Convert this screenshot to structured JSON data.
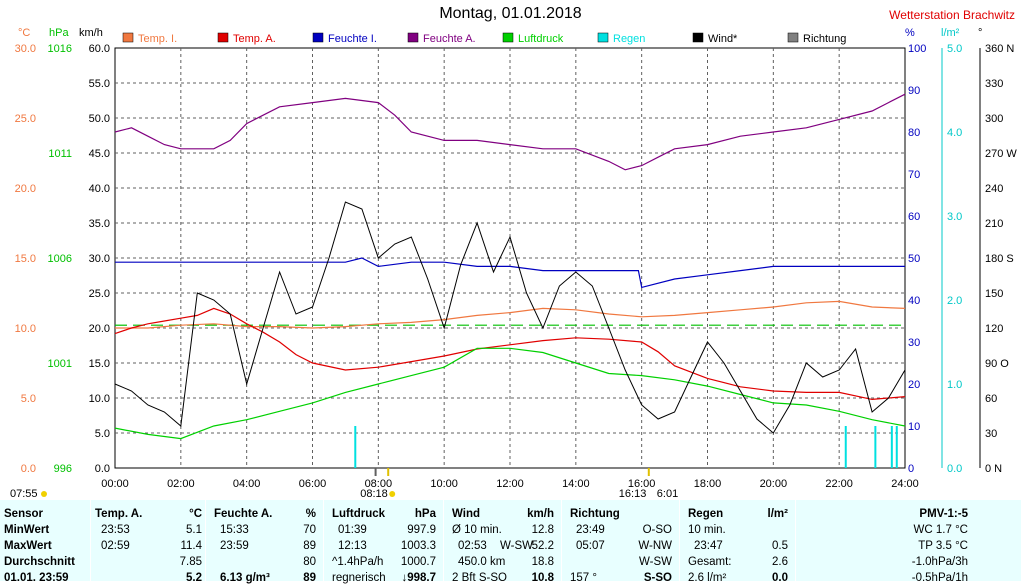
{
  "title": "Montag, 01.01.2018",
  "station": "Wetterstation Brachwitz",
  "legend": [
    {
      "label": "Temp. I.",
      "color": "#f07840"
    },
    {
      "label": "Temp. A.",
      "color": "#e00000"
    },
    {
      "label": "Feuchte I.",
      "color": "#0000c0"
    },
    {
      "label": "Feuchte A.",
      "color": "#800080"
    },
    {
      "label": "Luftdruck",
      "color": "#00d000"
    },
    {
      "label": "Regen",
      "color": "#00e0e0"
    },
    {
      "label": "Wind*",
      "color": "#000000"
    },
    {
      "label": "Richtung",
      "color": "#808080"
    }
  ],
  "axes_units": {
    "temp": "°C",
    "pressure": "hPa",
    "wind": "km/h",
    "humidity": "%",
    "rain": "l/m²",
    "direction": "°"
  },
  "chart_data": {
    "type": "line",
    "x_range": [
      "00:00",
      "24:00"
    ],
    "x_ticks": [
      "00:00",
      "02:00",
      "04:00",
      "06:00",
      "08:00",
      "10:00",
      "12:00",
      "14:00",
      "16:00",
      "18:00",
      "20:00",
      "22:00",
      "24:00"
    ],
    "axes": {
      "temp": {
        "range": [
          0,
          30
        ],
        "ticks": [
          "30.0",
          "25.0",
          "20.0",
          "15.0",
          "10.0",
          "5.0",
          "0.0"
        ],
        "color": "#f07840"
      },
      "pressure": {
        "range": [
          996,
          1016
        ],
        "ticks": [
          "1016",
          "1011",
          "1006",
          "1001",
          "996"
        ],
        "color": "#00c000"
      },
      "wind": {
        "range": [
          0,
          60
        ],
        "ticks": [
          "60.0",
          "55.0",
          "50.0",
          "45.0",
          "40.0",
          "35.0",
          "30.0",
          "25.0",
          "20.0",
          "15.0",
          "10.0",
          "5.0",
          "0.0"
        ],
        "color": "#000000"
      },
      "humidity": {
        "range": [
          0,
          100
        ],
        "ticks": [
          "100",
          "90",
          "80",
          "70",
          "60",
          "50",
          "40",
          "30",
          "20",
          "10",
          "0"
        ],
        "color": "#0000c0"
      },
      "rain": {
        "range": [
          0,
          5
        ],
        "ticks": [
          "5.0",
          "4.0",
          "3.0",
          "2.0",
          "1.0",
          "0.0"
        ],
        "color": "#00c8c8"
      },
      "direction": {
        "range": [
          0,
          360
        ],
        "ticks": [
          "360 N",
          "330",
          "300",
          "270 W",
          "240",
          "210",
          "180 S",
          "150",
          "120",
          "90 O",
          "60",
          "30",
          "0 N"
        ],
        "color": "#000000"
      }
    },
    "sunrise": "08:18",
    "sunset": "16:13",
    "day_length": "6:01",
    "dawn": "07:55",
    "series": [
      {
        "name": "Temp. I.",
        "axis": "temp",
        "x": [
          0,
          1,
          2,
          3,
          4,
          5,
          6,
          7,
          8,
          9,
          10,
          11,
          12,
          13,
          14,
          15,
          16,
          17,
          18,
          19,
          20,
          21,
          22,
          23,
          24
        ],
        "values": [
          10.0,
          10.0,
          10.2,
          10.3,
          10.1,
          10.1,
          10.0,
          10.1,
          10.3,
          10.4,
          10.6,
          10.9,
          11.1,
          11.4,
          11.3,
          11.0,
          10.8,
          10.9,
          11.1,
          11.3,
          11.5,
          11.8,
          11.9,
          11.5,
          11.4
        ]
      },
      {
        "name": "Temp. A.",
        "axis": "temp",
        "x": [
          0,
          0.5,
          1,
          1.5,
          2,
          2.5,
          3,
          3.5,
          4,
          4.5,
          5,
          5.5,
          6,
          7,
          8,
          9,
          10,
          11,
          12,
          13,
          14,
          15,
          16,
          16.5,
          17,
          18,
          19,
          20,
          21,
          22,
          23,
          24
        ],
        "values": [
          9.6,
          10.0,
          10.3,
          10.5,
          10.7,
          10.9,
          11.4,
          11.0,
          10.3,
          9.7,
          9.0,
          8.1,
          7.5,
          7.0,
          7.2,
          7.6,
          8.0,
          8.5,
          8.8,
          9.1,
          9.3,
          9.2,
          9.0,
          8.3,
          7.3,
          6.4,
          5.8,
          5.5,
          5.4,
          5.4,
          4.9,
          5.1
        ]
      },
      {
        "name": "Feuchte I.",
        "axis": "humidity",
        "x": [
          0,
          2,
          4,
          6,
          7,
          7.5,
          8,
          9,
          10,
          11,
          12,
          13,
          14,
          15,
          15.9,
          16,
          17,
          18,
          19,
          20,
          21,
          22,
          23,
          24
        ],
        "values": [
          49,
          49,
          49,
          49,
          49,
          50,
          48,
          49,
          49,
          48,
          48,
          47,
          47,
          47,
          47,
          43,
          45,
          46,
          47,
          48,
          48,
          48,
          48,
          48
        ]
      },
      {
        "name": "Feuchte A.",
        "axis": "humidity",
        "x": [
          0,
          0.5,
          1,
          1.5,
          2,
          3,
          3.5,
          4,
          4.5,
          5,
          6,
          7,
          8,
          8.5,
          9,
          10,
          11,
          12,
          13,
          14,
          15,
          15.5,
          16,
          16.5,
          17,
          18,
          19,
          20,
          21,
          22,
          23,
          23.5,
          24
        ],
        "values": [
          80,
          81,
          79,
          77,
          76,
          76,
          78,
          82,
          84,
          86,
          87,
          88,
          87,
          84,
          80,
          78,
          78,
          77,
          76,
          76,
          73,
          71,
          72,
          74,
          76,
          77,
          79,
          80,
          81,
          83,
          85,
          87,
          89
        ]
      },
      {
        "name": "Luftdruck",
        "axis": "pressure",
        "x": [
          0,
          1,
          2,
          3,
          4,
          5,
          6,
          7,
          8,
          9,
          10,
          11,
          12,
          13,
          14,
          15,
          16,
          17,
          18,
          19,
          20,
          21,
          22,
          23,
          24
        ],
        "values": [
          997.9,
          997.6,
          997.4,
          998.0,
          998.3,
          998.7,
          999.1,
          999.6,
          1000.0,
          1000.4,
          1000.8,
          1001.7,
          1001.7,
          1001.5,
          1001.0,
          1000.5,
          1000.4,
          1000.2,
          999.9,
          999.5,
          999.1,
          999.0,
          998.7,
          998.3,
          998.0
        ]
      },
      {
        "name": "Wind*",
        "axis": "wind",
        "x": [
          0,
          0.5,
          1,
          1.5,
          2,
          2.5,
          3,
          3.5,
          4,
          4.5,
          5,
          5.5,
          6,
          6.5,
          7,
          7.5,
          8,
          8.5,
          9,
          9.5,
          10,
          10.5,
          11,
          11.5,
          12,
          12.5,
          13,
          13.5,
          14,
          14.5,
          15,
          15.5,
          16,
          16.5,
          17,
          17.5,
          18,
          18.5,
          19,
          19.5,
          20,
          20.5,
          21,
          21.5,
          22,
          22.5,
          23,
          23.5,
          24
        ],
        "values": [
          12,
          11,
          9,
          8,
          6,
          25,
          24,
          22,
          12,
          20,
          28,
          22,
          23,
          30,
          38,
          37,
          30,
          32,
          33,
          27,
          20,
          29,
          35,
          28,
          33,
          25,
          20,
          26,
          28,
          26,
          20,
          14,
          9,
          7,
          8,
          13,
          18,
          15,
          11,
          7,
          5,
          9,
          15,
          13,
          14,
          17,
          8,
          10,
          14
        ]
      },
      {
        "name": "Regen",
        "axis": "rain",
        "type": "bars",
        "x": [
          7.3,
          22.2,
          23.1,
          23.6,
          23.75
        ],
        "values": [
          0.5,
          0.5,
          0.5,
          0.5,
          0.5
        ]
      }
    ]
  },
  "panel": {
    "sensor": {
      "header": "Sensor",
      "rows": [
        "MinWert",
        "MaxWert",
        "Durchschnitt",
        "01.01. 23:59"
      ]
    },
    "temp": {
      "header": "Temp. A.",
      "unit": "°C",
      "rows": [
        [
          "23:53",
          "5.1"
        ],
        [
          "02:59",
          "11.4"
        ],
        [
          "",
          "7.85"
        ],
        [
          "",
          "5.2"
        ]
      ]
    },
    "humidity": {
      "header": "Feuchte A.",
      "unit": "%",
      "rows": [
        [
          "15:33",
          "70"
        ],
        [
          "23:59",
          "89"
        ],
        [
          "",
          "80"
        ],
        [
          "6.13 g/m³",
          "89"
        ]
      ]
    },
    "pressure": {
      "header": "Luftdruck",
      "unit": "hPa",
      "rows": [
        [
          "01:39",
          "997.9"
        ],
        [
          "12:13",
          "1003.3"
        ],
        [
          "^1.4hPa/h",
          "1000.7"
        ],
        [
          "regnerisch",
          "↓998.7"
        ]
      ]
    },
    "wind": {
      "header": "Wind",
      "unit": "km/h",
      "rows": [
        [
          "Ø 10 min.",
          "",
          "12.8"
        ],
        [
          "02:53",
          "W-SW",
          "52.2"
        ],
        [
          "450.0 km",
          "",
          "18.8"
        ],
        [
          "2 Bft S-SO",
          "",
          "10.8"
        ]
      ]
    },
    "direction": {
      "header": "Richtung",
      "rows": [
        [
          "23:49",
          "O-SO"
        ],
        [
          "05:07",
          "W-NW"
        ],
        [
          "",
          "W-SW"
        ],
        [
          "157 °",
          "S-SO"
        ]
      ]
    },
    "rain": {
      "header": "Regen",
      "unit": "l/m²",
      "rows": [
        [
          "10 min.",
          ""
        ],
        [
          "23:47",
          "0.5"
        ],
        [
          "Gesamt:",
          "2.6"
        ],
        [
          "2.6 l/m²",
          "0.0"
        ]
      ]
    },
    "pmv": {
      "header": "PMV-1:-5",
      "rows": [
        "WC 1.7 °C",
        "TP 3.5 °C",
        "-1.0hPa/3h",
        "-0.5hPa/1h"
      ]
    }
  }
}
